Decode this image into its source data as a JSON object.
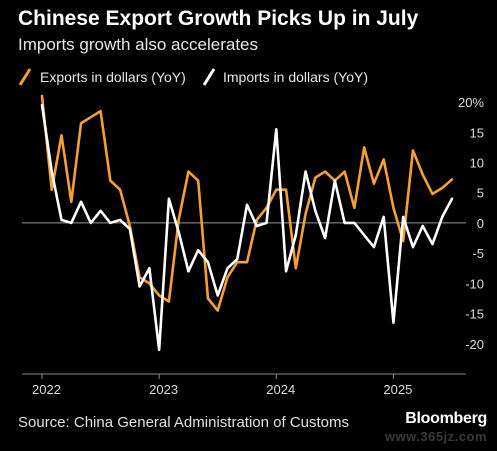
{
  "header": {
    "title": "Chinese Export Growth Picks Up in July",
    "subtitle": "Imports growth also accelerates"
  },
  "footer": {
    "source": "Source: China General Administration of Customs",
    "brand": "Bloomberg",
    "watermark": "www.365jz.com"
  },
  "colors": {
    "exports": "#F7A032",
    "imports": "#FFFFFF",
    "background": "#000000",
    "grid": "#3a3a3a"
  },
  "chart_data": {
    "type": "line",
    "title": "Chinese Export Growth Picks Up in July",
    "subtitle": "Imports growth also accelerates",
    "xlabel": "",
    "ylabel": "",
    "y_unit_suffix": "%",
    "ylim": [
      -25,
      22
    ],
    "yticks": [
      20,
      15,
      10,
      5,
      0,
      -5,
      -10,
      -15,
      -20
    ],
    "ytick_labels": [
      "20%",
      "15",
      "10",
      "5",
      "0",
      "-5",
      "-10",
      "-15",
      "-20"
    ],
    "xticks": [
      "2022",
      "2023",
      "2024",
      "2025"
    ],
    "x_start": "2022-01",
    "x_end": "2025-07",
    "legend": {
      "placement": "top-left"
    },
    "grid": false,
    "zero_line": true,
    "series": [
      {
        "name": "Exports in dollars (YoY)",
        "color": "#F7A032",
        "values": [
          {
            "x": "2022-01",
            "y": 21.0
          },
          {
            "x": "2022-02",
            "y": 5.5
          },
          {
            "x": "2022-03",
            "y": 14.5
          },
          {
            "x": "2022-04",
            "y": 3.5
          },
          {
            "x": "2022-05",
            "y": 16.5
          },
          {
            "x": "2022-06",
            "y": 17.5
          },
          {
            "x": "2022-07",
            "y": 18.5
          },
          {
            "x": "2022-08",
            "y": 7.0
          },
          {
            "x": "2022-09",
            "y": 5.5
          },
          {
            "x": "2022-10",
            "y": -0.5
          },
          {
            "x": "2022-11",
            "y": -9.0
          },
          {
            "x": "2022-12",
            "y": -10.0
          },
          {
            "x": "2023-01",
            "y": -12.0
          },
          {
            "x": "2023-02",
            "y": -13.0
          },
          {
            "x": "2023-03",
            "y": 0.5
          },
          {
            "x": "2023-04",
            "y": 8.5
          },
          {
            "x": "2023-05",
            "y": 7.0
          },
          {
            "x": "2023-06",
            "y": -12.5
          },
          {
            "x": "2023-07",
            "y": -14.5
          },
          {
            "x": "2023-08",
            "y": -9.0
          },
          {
            "x": "2023-09",
            "y": -6.5
          },
          {
            "x": "2023-10",
            "y": -6.5
          },
          {
            "x": "2023-11",
            "y": 0.5
          },
          {
            "x": "2023-12",
            "y": 2.5
          },
          {
            "x": "2024-01",
            "y": 5.5
          },
          {
            "x": "2024-02",
            "y": 5.5
          },
          {
            "x": "2024-03",
            "y": -7.5
          },
          {
            "x": "2024-04",
            "y": 1.5
          },
          {
            "x": "2024-05",
            "y": 7.5
          },
          {
            "x": "2024-06",
            "y": 8.5
          },
          {
            "x": "2024-07",
            "y": 7.0
          },
          {
            "x": "2024-08",
            "y": 8.5
          },
          {
            "x": "2024-09",
            "y": 2.5
          },
          {
            "x": "2024-10",
            "y": 12.5
          },
          {
            "x": "2024-11",
            "y": 6.5
          },
          {
            "x": "2024-12",
            "y": 10.5
          },
          {
            "x": "2025-01",
            "y": 2.5
          },
          {
            "x": "2025-02",
            "y": -3.0
          },
          {
            "x": "2025-03",
            "y": 12.0
          },
          {
            "x": "2025-04",
            "y": 8.0
          },
          {
            "x": "2025-05",
            "y": 4.8
          },
          {
            "x": "2025-06",
            "y": 5.8
          },
          {
            "x": "2025-07",
            "y": 7.2
          }
        ]
      },
      {
        "name": "Imports in dollars (YoY)",
        "color": "#FFFFFF",
        "values": [
          {
            "x": "2022-01",
            "y": 19.5
          },
          {
            "x": "2022-02",
            "y": 8.5
          },
          {
            "x": "2022-03",
            "y": 0.5
          },
          {
            "x": "2022-04",
            "y": 0.0
          },
          {
            "x": "2022-05",
            "y": 3.5
          },
          {
            "x": "2022-06",
            "y": 0.0
          },
          {
            "x": "2022-07",
            "y": 2.0
          },
          {
            "x": "2022-08",
            "y": 0.0
          },
          {
            "x": "2022-09",
            "y": 0.5
          },
          {
            "x": "2022-10",
            "y": -1.0
          },
          {
            "x": "2022-11",
            "y": -10.5
          },
          {
            "x": "2022-12",
            "y": -7.5
          },
          {
            "x": "2023-01",
            "y": -21.0
          },
          {
            "x": "2023-02",
            "y": 4.0
          },
          {
            "x": "2023-03",
            "y": -1.5
          },
          {
            "x": "2023-04",
            "y": -8.0
          },
          {
            "x": "2023-05",
            "y": -4.5
          },
          {
            "x": "2023-06",
            "y": -6.5
          },
          {
            "x": "2023-07",
            "y": -12.0
          },
          {
            "x": "2023-08",
            "y": -7.5
          },
          {
            "x": "2023-09",
            "y": -6.0
          },
          {
            "x": "2023-10",
            "y": 3.0
          },
          {
            "x": "2023-11",
            "y": -0.5
          },
          {
            "x": "2023-12",
            "y": 0.0
          },
          {
            "x": "2024-01",
            "y": 15.5
          },
          {
            "x": "2024-02",
            "y": -8.0
          },
          {
            "x": "2024-03",
            "y": -2.0
          },
          {
            "x": "2024-04",
            "y": 8.5
          },
          {
            "x": "2024-05",
            "y": 2.0
          },
          {
            "x": "2024-06",
            "y": -2.5
          },
          {
            "x": "2024-07",
            "y": 7.0
          },
          {
            "x": "2024-08",
            "y": 0.0
          },
          {
            "x": "2024-09",
            "y": 0.0
          },
          {
            "x": "2024-10",
            "y": -2.0
          },
          {
            "x": "2024-11",
            "y": -4.0
          },
          {
            "x": "2024-12",
            "y": 1.0
          },
          {
            "x": "2025-01",
            "y": -16.5
          },
          {
            "x": "2025-02",
            "y": 1.0
          },
          {
            "x": "2025-03",
            "y": -4.0
          },
          {
            "x": "2025-04",
            "y": -0.5
          },
          {
            "x": "2025-05",
            "y": -3.5
          },
          {
            "x": "2025-06",
            "y": 1.0
          },
          {
            "x": "2025-07",
            "y": 4.0
          }
        ]
      }
    ]
  }
}
